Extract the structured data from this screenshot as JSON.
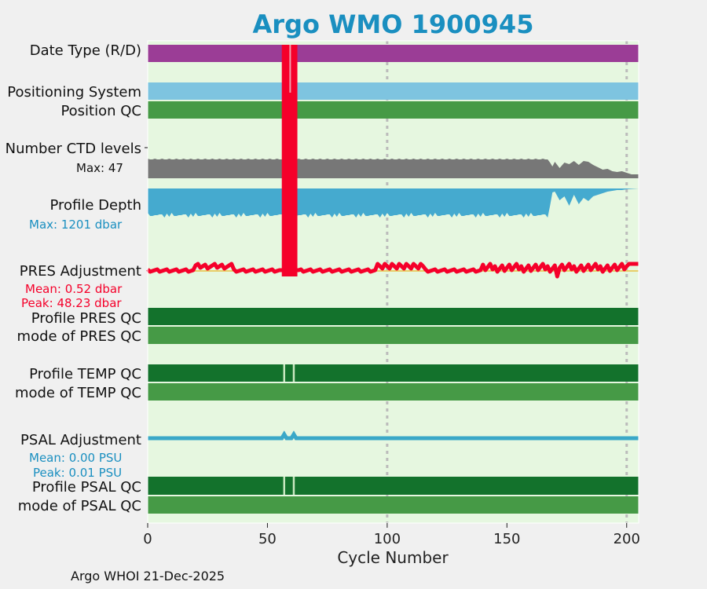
{
  "chart_data": {
    "type": "timeline",
    "title": "Argo WMO 1900945",
    "xlabel": "Cycle Number",
    "xlim": [
      0,
      205
    ],
    "xticks": [
      0,
      50,
      100,
      150,
      200
    ],
    "grid_x": [
      100,
      200
    ],
    "rows": {
      "date_type": "Date Type (R/D)",
      "positioning_system": "Positioning System",
      "position_qc": "Position QC",
      "ctd_levels": "Number CTD levels",
      "ctd_levels_max": "Max: 47",
      "profile_depth": "Profile Depth",
      "profile_depth_max": "Max: 1201 dbar",
      "pres_adjustment": "PRES Adjustment",
      "pres_adjustment_mean": "Mean: 0.52 dbar",
      "pres_adjustment_peak": "Peak: 48.23 dbar",
      "profile_pres_qc": "Profile PRES QC",
      "mode_pres_qc": "mode of PRES QC",
      "profile_temp_qc": "Profile TEMP QC",
      "mode_temp_qc": "mode of TEMP QC",
      "psal_adjustment": "PSAL Adjustment",
      "psal_adjustment_mean": "Mean: 0.00 PSU",
      "psal_adjustment_peak": "Peak: 0.01 PSU",
      "profile_psal_qc": "Profile PSAL QC",
      "mode_psal_qc": "mode of PSAL QC"
    },
    "pres_spike_cycles": [
      56,
      62
    ],
    "qc_gap_cycles": [
      57,
      61
    ],
    "ctd_levels_decline_cycle": 167,
    "profile_depth_shallowing_cycle": 167
  },
  "footer": "Argo WHOI 21-Dec-2025",
  "colors": {
    "title": "#1a8fc0",
    "background": "#e6f7e0",
    "date_type": "#9b3d96",
    "positioning": "#7ec4e0",
    "qc_light": "#469a46",
    "qc_dark": "#13722c",
    "ctd_gray": "#777777",
    "depth_blue": "#45aacf",
    "pres_red": "#f5002a",
    "psal_blue": "#3aa8c8",
    "pres_label": "#f5002a",
    "depth_label": "#1a8fc0"
  }
}
